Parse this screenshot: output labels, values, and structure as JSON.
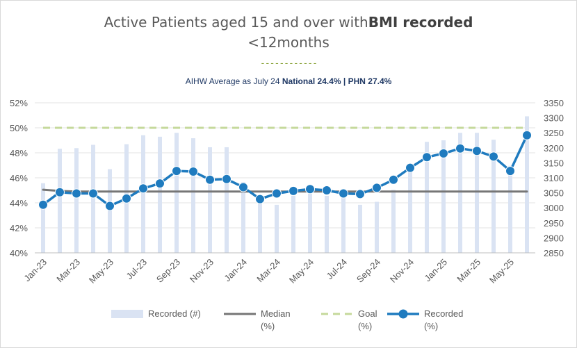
{
  "chart_data": {
    "type": "combo",
    "title_part1": "Active Patients aged 15 and over with",
    "title_bold": "BMI recorded",
    "title_line2": "<12months",
    "decorative_dashes": "------------",
    "subtitle_prefix": "AIHW Average as July 24 ",
    "subtitle_national": "National 24.4%",
    "subtitle_separator": " | ",
    "subtitle_phn": "PHN 27.4%",
    "categories": [
      "Jan-23",
      "Feb-23",
      "Mar-23",
      "Apr-23",
      "May-23",
      "Jun-23",
      "Jul-23",
      "Aug-23",
      "Sep-23",
      "Oct-23",
      "Nov-23",
      "Dec-23",
      "Jan-24",
      "Feb-24",
      "Mar-24",
      "Apr-24",
      "May-24",
      "Jun-24",
      "Jul-24",
      "Aug-24",
      "Sep-24",
      "Oct-24",
      "Nov-24",
      "Dec-24",
      "Jan-25",
      "Feb-25",
      "Mar-25",
      "Apr-25",
      "May-25",
      "Jun-25"
    ],
    "x_tick_labels": [
      "Jan-23",
      "Mar-23",
      "May-23",
      "Jul-23",
      "Sep-23",
      "Nov-23",
      "Jan-24",
      "Mar-24",
      "May-24",
      "Jul-24",
      "Sep-24",
      "Nov-24",
      "Jan-25",
      "Mar-25",
      "May-25"
    ],
    "y_left": {
      "min": 0.4,
      "max": 0.52,
      "ticks": [
        "40%",
        "42%",
        "44%",
        "46%",
        "48%",
        "50%",
        "52%"
      ]
    },
    "y_right": {
      "min": 2850,
      "max": 3350,
      "ticks": [
        "2850",
        "2900",
        "2950",
        "3000",
        "3050",
        "3100",
        "3150",
        "3200",
        "3250",
        "3300",
        "3350"
      ]
    },
    "series": [
      {
        "name": "Recorded (#)",
        "type": "bar",
        "axis": "right",
        "color": "#dae3f3",
        "values": [
          3082,
          3197,
          3199,
          3210,
          3129,
          3212,
          3242,
          3237,
          3250,
          3232,
          3202,
          3202,
          3086,
          3029,
          3010,
          3040,
          3060,
          3040,
          3040,
          3010,
          3020,
          3060,
          3130,
          3220,
          3225,
          3250,
          3250,
          3227,
          3140,
          3305
        ]
      },
      {
        "name": "Median (%)",
        "type": "line",
        "axis": "left",
        "color": "#767676",
        "values": [
          0.4505,
          0.4495,
          0.449,
          0.449,
          0.449,
          0.449,
          0.449,
          0.449,
          0.449,
          0.449,
          0.449,
          0.449,
          0.449,
          0.449,
          0.449,
          0.449,
          0.449,
          0.449,
          0.449,
          0.449,
          0.449,
          0.449,
          0.449,
          0.449,
          0.449,
          0.449,
          0.449,
          0.449,
          0.449,
          0.449
        ]
      },
      {
        "name": "Goal (%)",
        "type": "line",
        "axis": "left",
        "color": "#c5d99b",
        "dashed": true,
        "values": [
          0.5,
          0.5,
          0.5,
          0.5,
          0.5,
          0.5,
          0.5,
          0.5,
          0.5,
          0.5,
          0.5,
          0.5,
          0.5,
          0.5,
          0.5,
          0.5,
          0.5,
          0.5,
          0.5,
          0.5,
          0.5,
          0.5,
          0.5,
          0.5,
          0.5,
          0.5,
          0.5,
          0.5,
          0.5,
          0.5
        ]
      },
      {
        "name": "Recorded (%)",
        "type": "line",
        "axis": "left",
        "color": "#1f7bbf",
        "markers": true,
        "values": [
          0.4385,
          0.4485,
          0.4475,
          0.4475,
          0.4375,
          0.4435,
          0.4515,
          0.4555,
          0.4655,
          0.465,
          0.4585,
          0.459,
          0.4525,
          0.443,
          0.4475,
          0.4495,
          0.451,
          0.45,
          0.4475,
          0.447,
          0.452,
          0.4585,
          0.468,
          0.4765,
          0.4795,
          0.4835,
          0.4815,
          0.477,
          0.4655,
          0.494
        ]
      }
    ],
    "legend": [
      {
        "label_line1": "Recorded (#)",
        "label_line2": "",
        "kind": "bar"
      },
      {
        "label_line1": "Median",
        "label_line2": "(%)",
        "kind": "line"
      },
      {
        "label_line1": "Goal",
        "label_line2": "(%)",
        "kind": "dashed"
      },
      {
        "label_line1": "Recorded",
        "label_line2": "(%)",
        "kind": "marker-line"
      }
    ],
    "legend_position": "bottom",
    "grid": "horizontal"
  }
}
